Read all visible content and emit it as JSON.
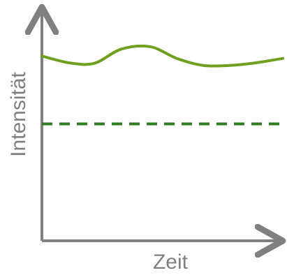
{
  "chart_data": {
    "type": "line",
    "xlabel": "Zeit",
    "ylabel": "Intensität",
    "xlim": [
      0,
      10
    ],
    "ylim": [
      0,
      10
    ],
    "grid": false,
    "series": [
      {
        "kind": "solid",
        "x": [
          0,
          1.2,
          2.2,
          3.3,
          4.5,
          5.6,
          6.7,
          7.8,
          8.8,
          10
        ],
        "y": [
          7.9,
          7.6,
          7.6,
          8.2,
          8.3,
          7.8,
          7.5,
          7.5,
          7.6,
          7.8
        ],
        "color": "#70a020"
      },
      {
        "kind": "dashed",
        "x": [
          0,
          10
        ],
        "y": [
          5.0,
          5.0
        ],
        "color": "#2e7d1e"
      }
    ],
    "colors": {
      "axis": "#808080",
      "solid_line": "#70a020",
      "dashed_line": "#2e7d1e"
    }
  }
}
